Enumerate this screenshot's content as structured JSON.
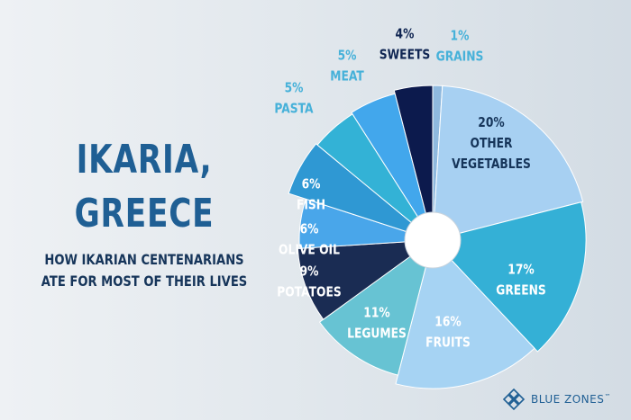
{
  "heading": {
    "line1": "IKARIA,",
    "line2": "GREECE"
  },
  "subheading": {
    "line1": "HOW  IKARIAN CENTENARIANS",
    "line2": "ATE FOR MOST OF THEIR LIVES"
  },
  "brand": {
    "name": "BLUE ZONES",
    "mark": "™"
  },
  "chart_data": {
    "type": "pie",
    "style": "donut with small white center",
    "start": "top, clockwise",
    "slices": [
      {
        "pct": "1%",
        "value": 1,
        "label": [
          "GRAINS"
        ],
        "color": "#8fb9de"
      },
      {
        "pct": "20%",
        "value": 20,
        "label": [
          "OTHER",
          "VEGETABLES"
        ],
        "color": "#a7d0f2"
      },
      {
        "pct": "17%",
        "value": 17,
        "label": [
          "GREENS"
        ],
        "color": "#34b0d6"
      },
      {
        "pct": "16%",
        "value": 16,
        "label": [
          "FRUITS"
        ],
        "color": "#a6d3f3"
      },
      {
        "pct": "11%",
        "value": 11,
        "label": [
          "LEGUMES"
        ],
        "color": "#67c3d3"
      },
      {
        "pct": "9%",
        "value": 9,
        "label": [
          "POTATOES"
        ],
        "color": "#1a2c53"
      },
      {
        "pct": "6%",
        "value": 6,
        "label": [
          "OLIVE OIL"
        ],
        "color": "#49a6ea"
      },
      {
        "pct": "6%",
        "value": 6,
        "label": [
          "FISH"
        ],
        "color": "#2f98d3"
      },
      {
        "pct": "5%",
        "value": 5,
        "label": [
          "PASTA"
        ],
        "color": "#33b2d6"
      },
      {
        "pct": "5%",
        "value": 5,
        "label": [
          "MEAT"
        ],
        "color": "#42a7ec"
      },
      {
        "pct": "4%",
        "value": 4,
        "label": [
          "SWEETS"
        ],
        "color": "#0c1a4d"
      }
    ],
    "label_colors": {
      "outside_light": "#46b1d9",
      "outside_dark": "#0f2552",
      "inside_on_light": "#16355a",
      "inside_on_dark": "#ffffff"
    }
  }
}
